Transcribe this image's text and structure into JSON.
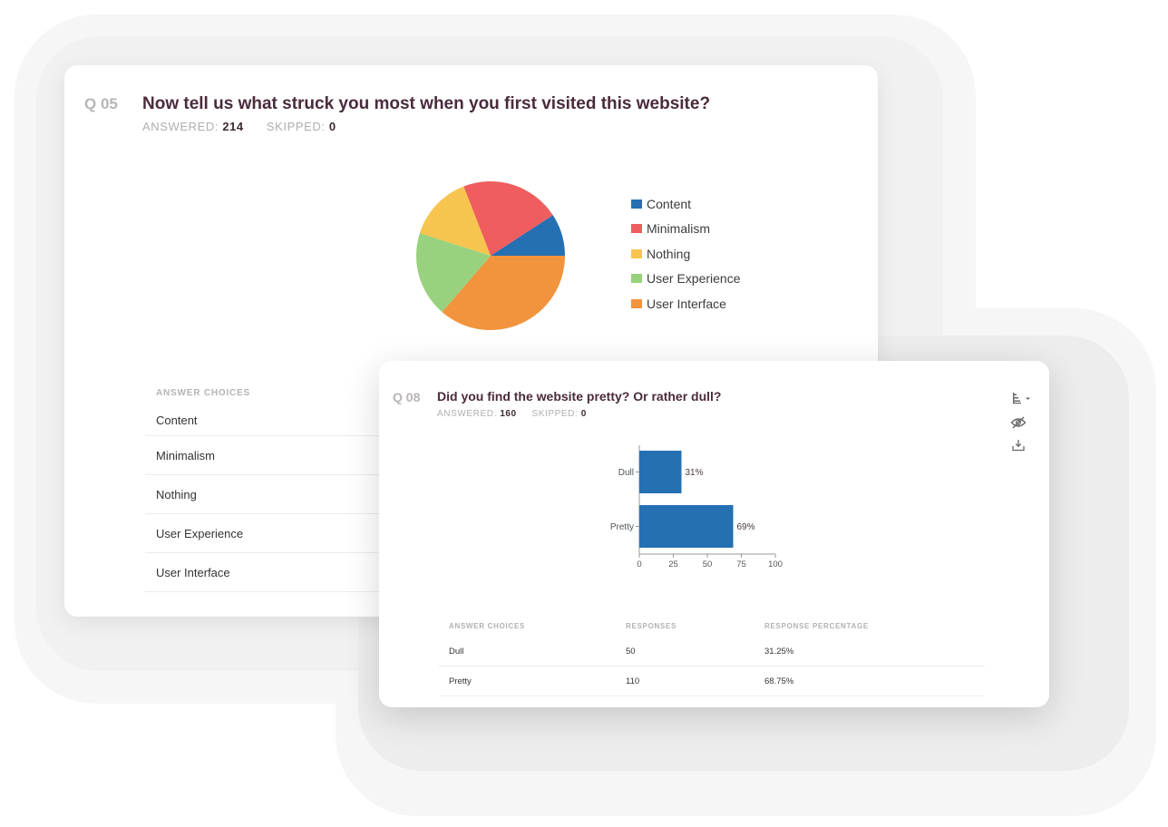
{
  "q05": {
    "number": "Q 05",
    "title": "Now tell us what struck you most when you first visited this website?",
    "answered_label": "ANSWERED:",
    "answered_value": "214",
    "skipped_label": "SKIPPED:",
    "skipped_value": "0",
    "legend": [
      {
        "label": "Content",
        "color": "#2470b3"
      },
      {
        "label": "Minimalism",
        "color": "#ef5d5e"
      },
      {
        "label": "Nothing",
        "color": "#f7c54f"
      },
      {
        "label": "User Experience",
        "color": "#98d27e"
      },
      {
        "label": "User Interface",
        "color": "#f1943d"
      }
    ],
    "table": {
      "header": "ANSWER CHOICES",
      "rows": [
        "Content",
        "Minimalism",
        "Nothing",
        "User Experience",
        "User Interface"
      ]
    }
  },
  "q08": {
    "number": "Q 08",
    "title": "Did you find the website pretty? Or rather dull?",
    "answered_label": "ANSWERED:",
    "answered_value": "160",
    "skipped_label": "SKIPPED:",
    "skipped_value": "0",
    "icons": [
      "chart-type-icon",
      "hide-icon",
      "download-icon"
    ],
    "table": {
      "headers": [
        "ANSWER CHOICES",
        "RESPONSES",
        "RESPONSE PERCENTAGE"
      ],
      "rows": [
        {
          "choice": "Dull",
          "responses": "50",
          "percentage": "31.25%"
        },
        {
          "choice": "Pretty",
          "responses": "110",
          "percentage": "68.75%"
        }
      ]
    }
  },
  "chart_data": [
    {
      "type": "pie",
      "title": "Now tell us what struck you most when you first visited this website?",
      "categories": [
        "Content",
        "Minimalism",
        "Nothing",
        "User Experience",
        "User Interface"
      ],
      "values": [
        9.2,
        21.7,
        14.2,
        18.6,
        36.3
      ],
      "colors": [
        "#2470b3",
        "#ef5d5e",
        "#f7c54f",
        "#98d27e",
        "#f1943d"
      ],
      "legend_position": "right"
    },
    {
      "type": "bar",
      "orientation": "horizontal",
      "title": "Did you find the website pretty? Or rather dull?",
      "categories": [
        "Dull",
        "Pretty"
      ],
      "values": [
        31,
        69
      ],
      "data_labels": [
        "31%",
        "69%"
      ],
      "xlim": [
        0,
        100
      ],
      "xticks": [
        "0",
        "25",
        "50",
        "75",
        "100"
      ],
      "color": "#2470b3",
      "grid": false
    }
  ]
}
